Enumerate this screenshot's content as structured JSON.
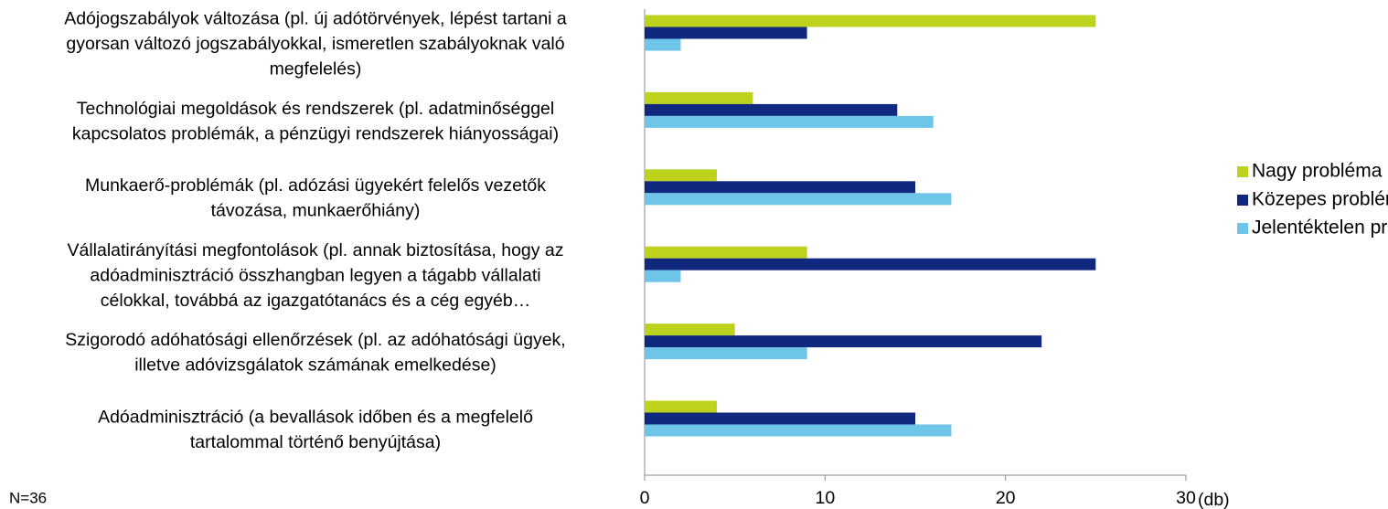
{
  "chart_data": {
    "type": "hbar",
    "categories": [
      [
        "Adójogszabályok változása (pl. új adótörvények, lépést tartani a",
        "gyorsan változó jogszabályokkal, ismeretlen szabályoknak való",
        "megfelelés)"
      ],
      [
        "Technológiai megoldások és rendszerek (pl. adatminőséggel",
        "kapcsolatos problémák, a pénzügyi rendszerek hiányosságai)"
      ],
      [
        "Munkaerő-problémák (pl. adózási ügyekért felelős vezetők",
        "távozása, munkaerőhiány)"
      ],
      [
        "Vállalatirányítási megfontolások (pl. annak biztosítása, hogy az",
        "adóadminisztráció összhangban legyen a tágabb vállalati",
        "célokkal, továbbá az igazgatótanács és a cég egyéb…"
      ],
      [
        "Szigorodó adóhatósági ellenőrzések (pl. az adóhatósági ügyek,",
        "illetve adóvizsgálatok számának emelkedése)"
      ],
      [
        "Adóadminisztráció (a bevallások időben és a megfelelő",
        "tartalommal történő benyújtása)"
      ]
    ],
    "series": [
      {
        "name": "Nagy probléma",
        "color": "#bdd21d",
        "values": [
          25,
          6,
          4,
          9,
          5,
          4
        ]
      },
      {
        "name": "Közepes probléma",
        "color": "#10297f",
        "values": [
          9,
          14,
          15,
          25,
          22,
          15
        ]
      },
      {
        "name": "Jelentéktelen probléma",
        "color": "#6fc5e8",
        "values": [
          2,
          16,
          17,
          2,
          9,
          17
        ]
      }
    ],
    "xlim": [
      0,
      30
    ],
    "xticks": [
      0,
      10,
      20,
      30
    ],
    "xlabel": "(db)",
    "note": "N=36",
    "legend": "right"
  }
}
